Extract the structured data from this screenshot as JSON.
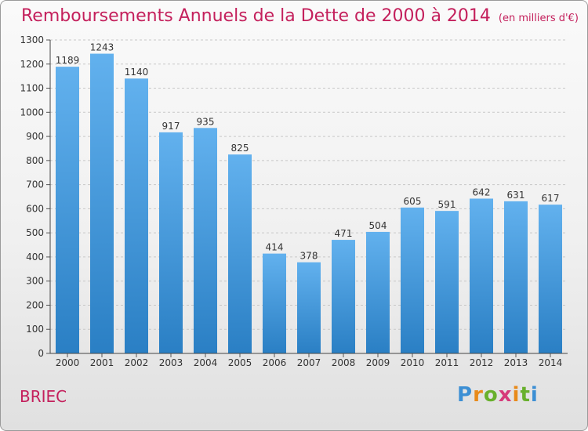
{
  "header": {
    "title": "Remboursements Annuels de la Dette de 2000 à 2014",
    "unit": "(en milliers d'€)"
  },
  "footer": {
    "commune": "BRIEC",
    "logo": "Proxiti"
  },
  "colors": {
    "title": "#c4205c",
    "bar_light": "#62b1ee",
    "bar_dark": "#2a7fc4",
    "grid": "#c8c8c8"
  },
  "chart_data": {
    "type": "bar",
    "title": "Remboursements Annuels de la Dette de 2000 à 2014",
    "subtitle": "(en milliers d'€)",
    "xlabel": "",
    "ylabel": "",
    "categories": [
      "2000",
      "2001",
      "2002",
      "2003",
      "2004",
      "2005",
      "2006",
      "2007",
      "2008",
      "2009",
      "2010",
      "2011",
      "2012",
      "2013",
      "2014"
    ],
    "values": [
      1189,
      1243,
      1140,
      917,
      935,
      825,
      414,
      378,
      471,
      504,
      605,
      591,
      642,
      631,
      617
    ],
    "ylim": [
      0,
      1300
    ],
    "yticks": [
      0,
      100,
      200,
      300,
      400,
      500,
      600,
      700,
      800,
      900,
      1000,
      1100,
      1200,
      1300
    ],
    "grid": "horizontal dashed",
    "legend": "none"
  }
}
